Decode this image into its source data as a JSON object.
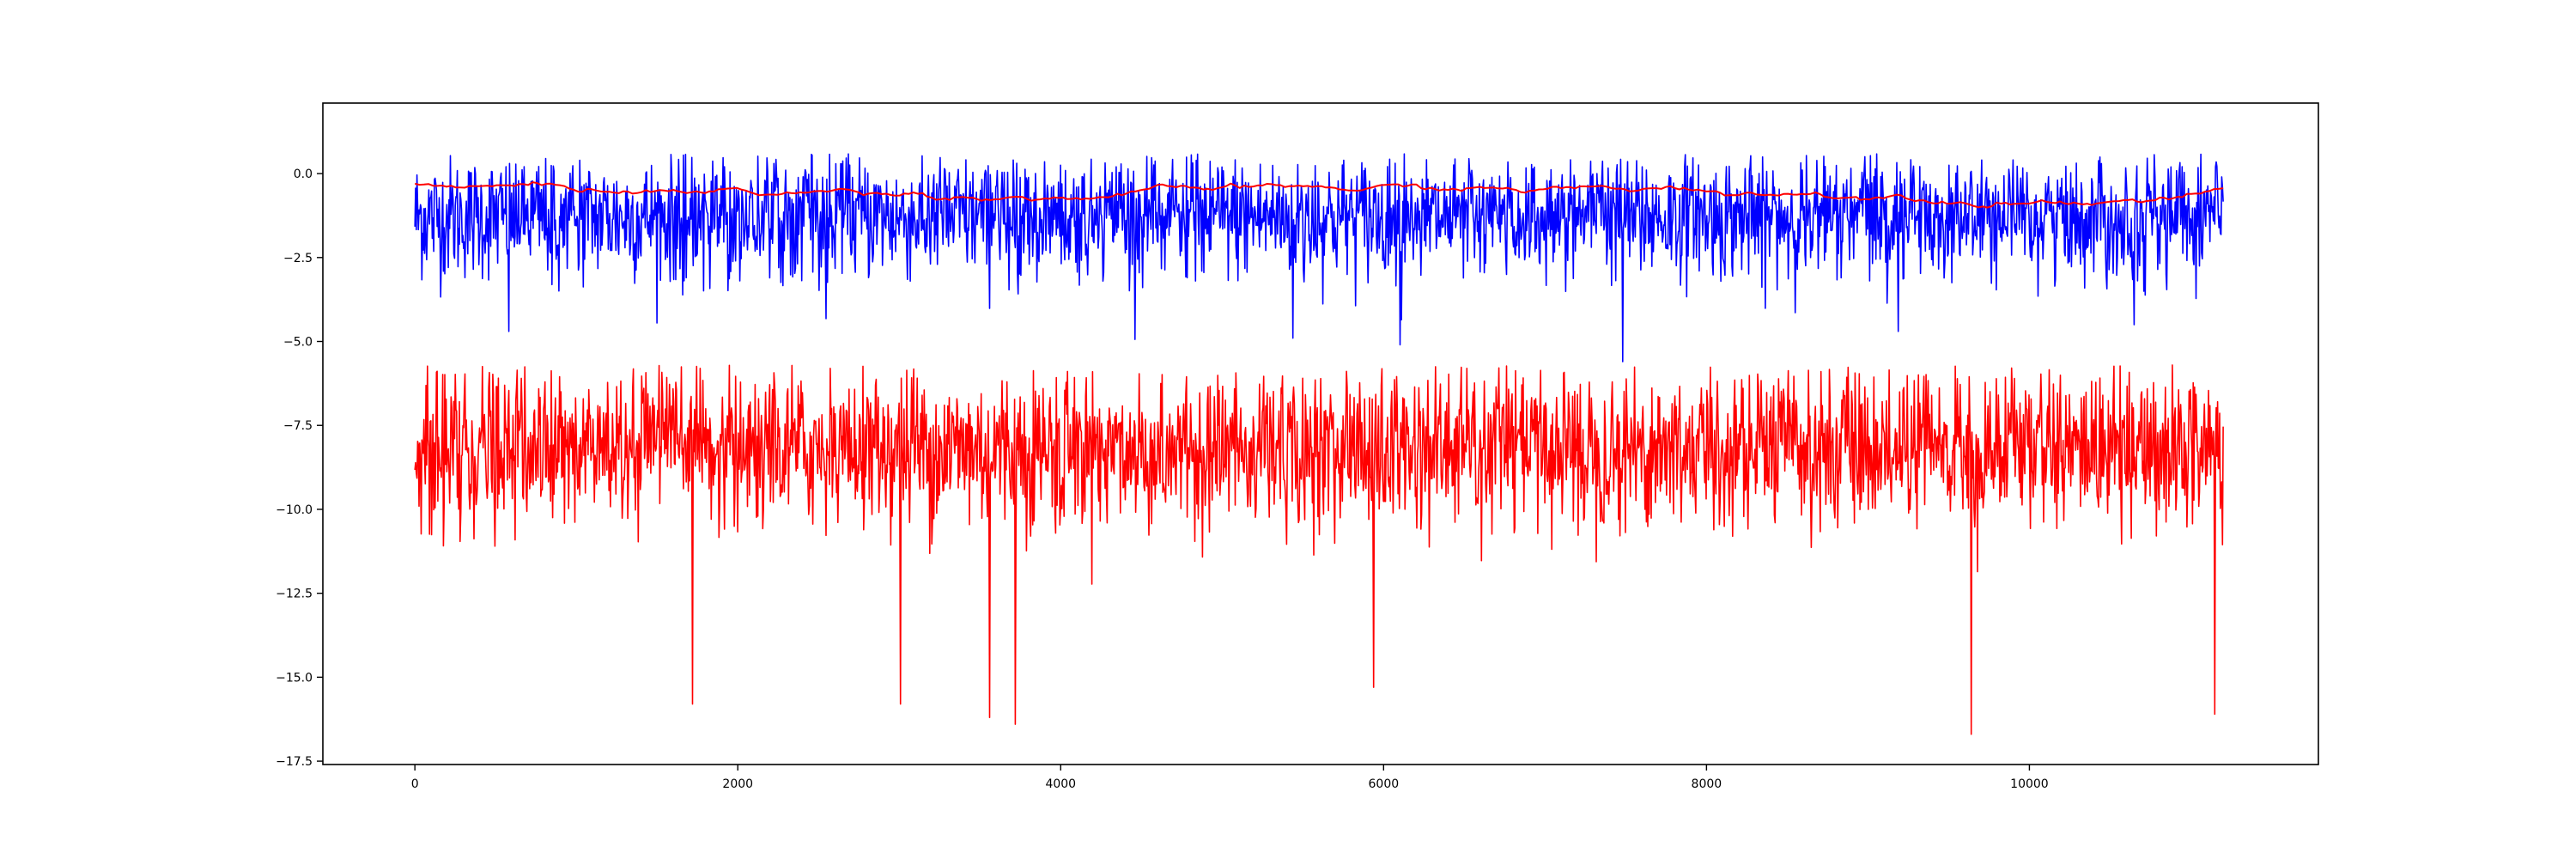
{
  "chart_data": {
    "type": "line",
    "title": "",
    "xlabel": "",
    "ylabel": "",
    "xlim": [
      -570,
      11790
    ],
    "ylim": [
      -17.6,
      2.1
    ],
    "grid": false,
    "legend": "none",
    "x_ticks": [
      0,
      2000,
      4000,
      6000,
      8000,
      10000
    ],
    "x_tick_labels": [
      "0",
      "2000",
      "4000",
      "6000",
      "8000",
      "10000"
    ],
    "y_ticks": [
      0.0,
      -2.5,
      -5.0,
      -7.5,
      -10.0,
      -12.5,
      -15.0,
      -17.5
    ],
    "y_tick_labels": [
      "0.0",
      "−2.5",
      "−5.0",
      "−7.5",
      "−10.0",
      "−12.5",
      "−15.0",
      "−17.5"
    ],
    "x_range": [
      0,
      11200
    ],
    "series": [
      {
        "color": "#0000ff",
        "style": "noisy line",
        "x_range": [
          0,
          11200
        ],
        "typical_band": [
          -3.5,
          0.3
        ],
        "mean_approx": -1.3,
        "spikes": [
          {
            "x": 580,
            "y": -4.7
          },
          {
            "x": 5440,
            "y": -4.9
          },
          {
            "x": 6100,
            "y": -5.1
          },
          {
            "x": 7480,
            "y": -5.6
          },
          {
            "x": 10650,
            "y": -4.5
          }
        ]
      },
      {
        "color": "#ff0000",
        "style": "noisy line",
        "x_range": [
          0,
          11200
        ],
        "typical_band": [
          -11.0,
          -6.0
        ],
        "mean_approx": -8.2,
        "spikes": [
          {
            "x": 1720,
            "y": -15.8
          },
          {
            "x": 3010,
            "y": -15.8
          },
          {
            "x": 3560,
            "y": -16.2
          },
          {
            "x": 3720,
            "y": -16.4
          },
          {
            "x": 5940,
            "y": -15.3
          },
          {
            "x": 9640,
            "y": -16.7
          },
          {
            "x": 11150,
            "y": -16.1
          }
        ]
      },
      {
        "color": "#ff0000",
        "style": "smooth line",
        "x_range": [
          0,
          11200
        ],
        "mean_approx": -0.55,
        "start_value": -0.3
      }
    ]
  }
}
